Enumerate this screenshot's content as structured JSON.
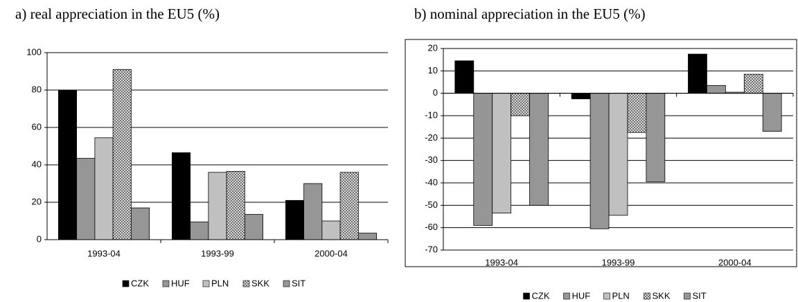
{
  "chart_data": [
    {
      "type": "bar",
      "title": "a)  real appreciation in the EU5 (%)",
      "categories": [
        "1993-04",
        "1993-99",
        "2000-04"
      ],
      "series": [
        {
          "name": "CZK",
          "color": "#000000",
          "values": [
            80,
            46.5,
            21
          ]
        },
        {
          "name": "HUF",
          "color": "#969696",
          "values": [
            43.5,
            9.5,
            30
          ]
        },
        {
          "name": "PLN",
          "color": "#c0c0c0",
          "values": [
            54.5,
            36,
            10
          ]
        },
        {
          "name": "SKK",
          "color": "#b0b0b0",
          "hatch": true,
          "values": [
            91,
            36.5,
            36
          ]
        },
        {
          "name": "SIT",
          "color": "#969696",
          "values": [
            17,
            13.5,
            3.5
          ]
        }
      ],
      "ylim": [
        0,
        100
      ],
      "yticks": [
        0,
        20,
        40,
        60,
        80,
        100
      ],
      "grid": true,
      "legend": "bottom"
    },
    {
      "type": "bar",
      "title": "b) nominal appreciation in the EU5 (%)",
      "categories": [
        "1993-04",
        "1993-99",
        "2000-04"
      ],
      "series": [
        {
          "name": "CZK",
          "color": "#000000",
          "values": [
            14.5,
            -2.5,
            17.5
          ]
        },
        {
          "name": "HUF",
          "color": "#969696",
          "values": [
            -59,
            -60.5,
            3.5
          ]
        },
        {
          "name": "PLN",
          "color": "#c0c0c0",
          "values": [
            -53.5,
            -54.5,
            0.5
          ]
        },
        {
          "name": "SKK",
          "color": "#b0b0b0",
          "hatch": true,
          "values": [
            -10,
            -17.5,
            8.5
          ]
        },
        {
          "name": "SIT",
          "color": "#969696",
          "values": [
            -50,
            -39.5,
            -17
          ]
        }
      ],
      "ylim": [
        -70,
        20
      ],
      "yticks": [
        -70,
        -60,
        -50,
        -40,
        -30,
        -20,
        -10,
        0,
        10,
        20
      ],
      "grid": true,
      "legend": "bottom"
    }
  ]
}
